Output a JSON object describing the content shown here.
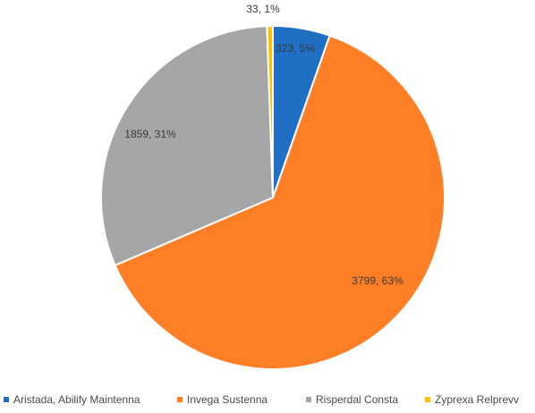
{
  "chart_data": {
    "type": "pie",
    "title": "",
    "legend_position": "bottom",
    "slices": [
      {
        "label": "Aristada, Abilify Maintenna",
        "value": 323,
        "percent_label": "323, 5%",
        "color": "#1f6fc5"
      },
      {
        "label": "Invega Sustenna",
        "value": 3799,
        "percent_label": "3799, 63%",
        "color": "#ff7f27"
      },
      {
        "label": "Risperdal Consta",
        "value": 1859,
        "percent_label": "1859, 31%",
        "color": "#a6a6a6"
      },
      {
        "label": "Zyprexa Relprevv",
        "value": 33,
        "percent_label": "33, 1%",
        "color": "#ffc000"
      }
    ]
  }
}
